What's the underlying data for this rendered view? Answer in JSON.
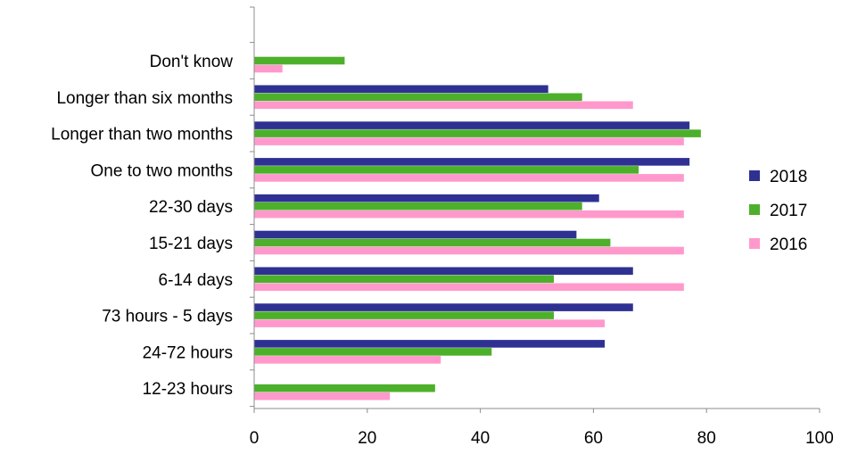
{
  "chart_data": {
    "type": "bar",
    "orientation": "horizontal",
    "categories": [
      "Don't know",
      "Longer than six months",
      "Longer than two months",
      "One to two months",
      "22-30 days",
      "15-21 days",
      "6-14 days",
      "73 hours - 5 days",
      "24-72 hours",
      "12-23 hours"
    ],
    "series": [
      {
        "name": "2018",
        "color": "#2e3192",
        "values": [
          null,
          52,
          77,
          77,
          61,
          57,
          67,
          67,
          62,
          null
        ]
      },
      {
        "name": "2017",
        "color": "#4db02a",
        "values": [
          16,
          58,
          79,
          68,
          58,
          63,
          53,
          53,
          42,
          32
        ]
      },
      {
        "name": "2016",
        "color": "#ff99cc",
        "values": [
          5,
          67,
          76,
          76,
          76,
          76,
          76,
          62,
          33,
          24
        ]
      }
    ],
    "xlim": [
      0,
      100
    ],
    "xticks": [
      "0",
      "20",
      "40",
      "60",
      "80",
      "100"
    ],
    "title": "",
    "xlabel": "",
    "ylabel": "",
    "grid": false,
    "legend_position": "right"
  }
}
